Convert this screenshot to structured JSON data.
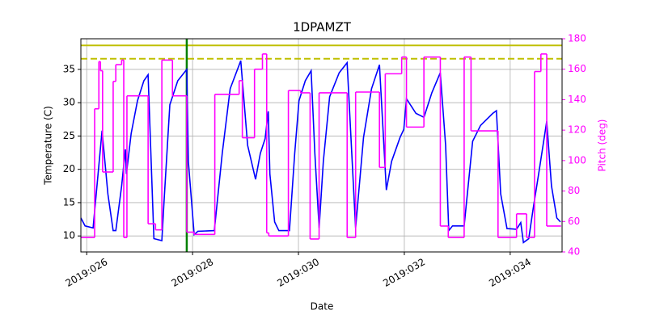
{
  "chart_data": {
    "type": "line",
    "title": "1DPAMZT",
    "xlabel": "Date",
    "ylabel": "Temperature (C)",
    "y2label": "Pitch (deg)",
    "y2color": "#ff00ff",
    "grid": true,
    "xlim": [
      25.89,
      34.98
    ],
    "ylim": [
      7.6,
      39.6
    ],
    "y2lim": [
      40,
      180
    ],
    "xticks": [
      {
        "value": 26,
        "label": "2019:026"
      },
      {
        "value": 28,
        "label": "2019:028"
      },
      {
        "value": 30,
        "label": "2019:030"
      },
      {
        "value": 32,
        "label": "2019:032"
      },
      {
        "value": 34,
        "label": "2019:034"
      }
    ],
    "yticks": [
      10,
      15,
      20,
      25,
      30,
      35
    ],
    "y2ticks": [
      40,
      60,
      80,
      100,
      120,
      140,
      160,
      180
    ],
    "hlines": [
      {
        "value": 38.6,
        "color": "#bfbf00",
        "style": "solid"
      },
      {
        "value": 36.6,
        "color": "#bfbf00",
        "style": "dashed"
      }
    ],
    "vlines": [
      {
        "value": 27.89,
        "color": "#008000",
        "style": "solid"
      }
    ],
    "series": [
      {
        "color": "#0000ff",
        "step": false,
        "x": [
          25.89,
          25.97,
          26.12,
          26.29,
          26.4,
          26.5,
          26.55,
          26.66,
          26.73,
          26.75,
          26.84,
          26.96,
          27.08,
          27.16,
          27.27,
          27.42,
          27.46,
          27.57,
          27.72,
          27.89,
          27.92,
          28.03,
          28.1,
          28.41,
          28.56,
          28.71,
          28.91,
          29.04,
          29.19,
          29.28,
          29.37,
          29.43,
          29.46,
          29.55,
          29.63,
          29.83,
          29.93,
          30.01,
          30.13,
          30.24,
          30.31,
          30.39,
          30.47,
          30.59,
          30.77,
          30.92,
          31.08,
          31.23,
          31.38,
          31.53,
          31.66,
          31.76,
          31.92,
          31.99,
          32.04,
          32.22,
          32.37,
          32.52,
          32.68,
          32.78,
          32.84,
          32.91,
          33.13,
          33.29,
          33.44,
          33.67,
          33.74,
          33.82,
          33.94,
          34.12,
          34.2,
          34.25,
          34.35,
          34.43,
          34.55,
          34.69,
          34.78,
          34.88,
          34.95
        ],
        "values": [
          12.7,
          11.5,
          11.2,
          25.8,
          16.3,
          10.8,
          10.8,
          17.5,
          23,
          19.3,
          25.4,
          30.3,
          33.3,
          34.2,
          9.6,
          9.3,
          15.1,
          29.7,
          33.3,
          35,
          21.2,
          10.2,
          10.7,
          10.8,
          22.4,
          32.1,
          36.3,
          23.6,
          18.5,
          22.4,
          24.6,
          28.7,
          19.3,
          12.1,
          10.8,
          10.8,
          22.4,
          30.3,
          33.3,
          34.8,
          22.4,
          11.2,
          21.2,
          30.9,
          34.5,
          36,
          11.2,
          24.8,
          32.1,
          35.7,
          16.9,
          21.2,
          24.8,
          26,
          30.6,
          28.4,
          27.8,
          31.5,
          34.5,
          23.6,
          10.8,
          11.5,
          11.5,
          24.2,
          26.6,
          28.4,
          28.8,
          16.3,
          11.1,
          11,
          12,
          9,
          9.6,
          13.9,
          20,
          27.2,
          17.5,
          12.7,
          12.1
        ]
      },
      {
        "color": "#ff00ff",
        "axis": "y2",
        "step": true,
        "x": [
          25.89,
          26.15,
          26.23,
          26.26,
          26.3,
          26.5,
          26.55,
          26.66,
          26.7,
          26.76,
          27.16,
          27.3,
          27.42,
          27.62,
          27.89,
          28.03,
          28.42,
          28.88,
          28.94,
          29.17,
          29.32,
          29.4,
          29.44,
          29.81,
          30.04,
          30.22,
          30.39,
          30.92,
          31.08,
          31.53,
          31.64,
          31.95,
          32.04,
          32.37,
          32.68,
          32.83,
          33.13,
          33.26,
          33.77,
          34.12,
          34.31,
          34.46,
          34.58,
          34.69,
          34.96
        ],
        "values": [
          49.5,
          134,
          165,
          159,
          92.5,
          152,
          163,
          166,
          49.5,
          142.5,
          58.5,
          54.5,
          166,
          142.5,
          53,
          51.5,
          143.5,
          152.5,
          115,
          160,
          170,
          52.5,
          50.5,
          146,
          144.5,
          48.5,
          144.5,
          49.5,
          145,
          95.5,
          157,
          168,
          122,
          168,
          57,
          49.5,
          168,
          119.5,
          49.5,
          65,
          49.5,
          158.5,
          170,
          57,
          57
        ]
      }
    ]
  }
}
